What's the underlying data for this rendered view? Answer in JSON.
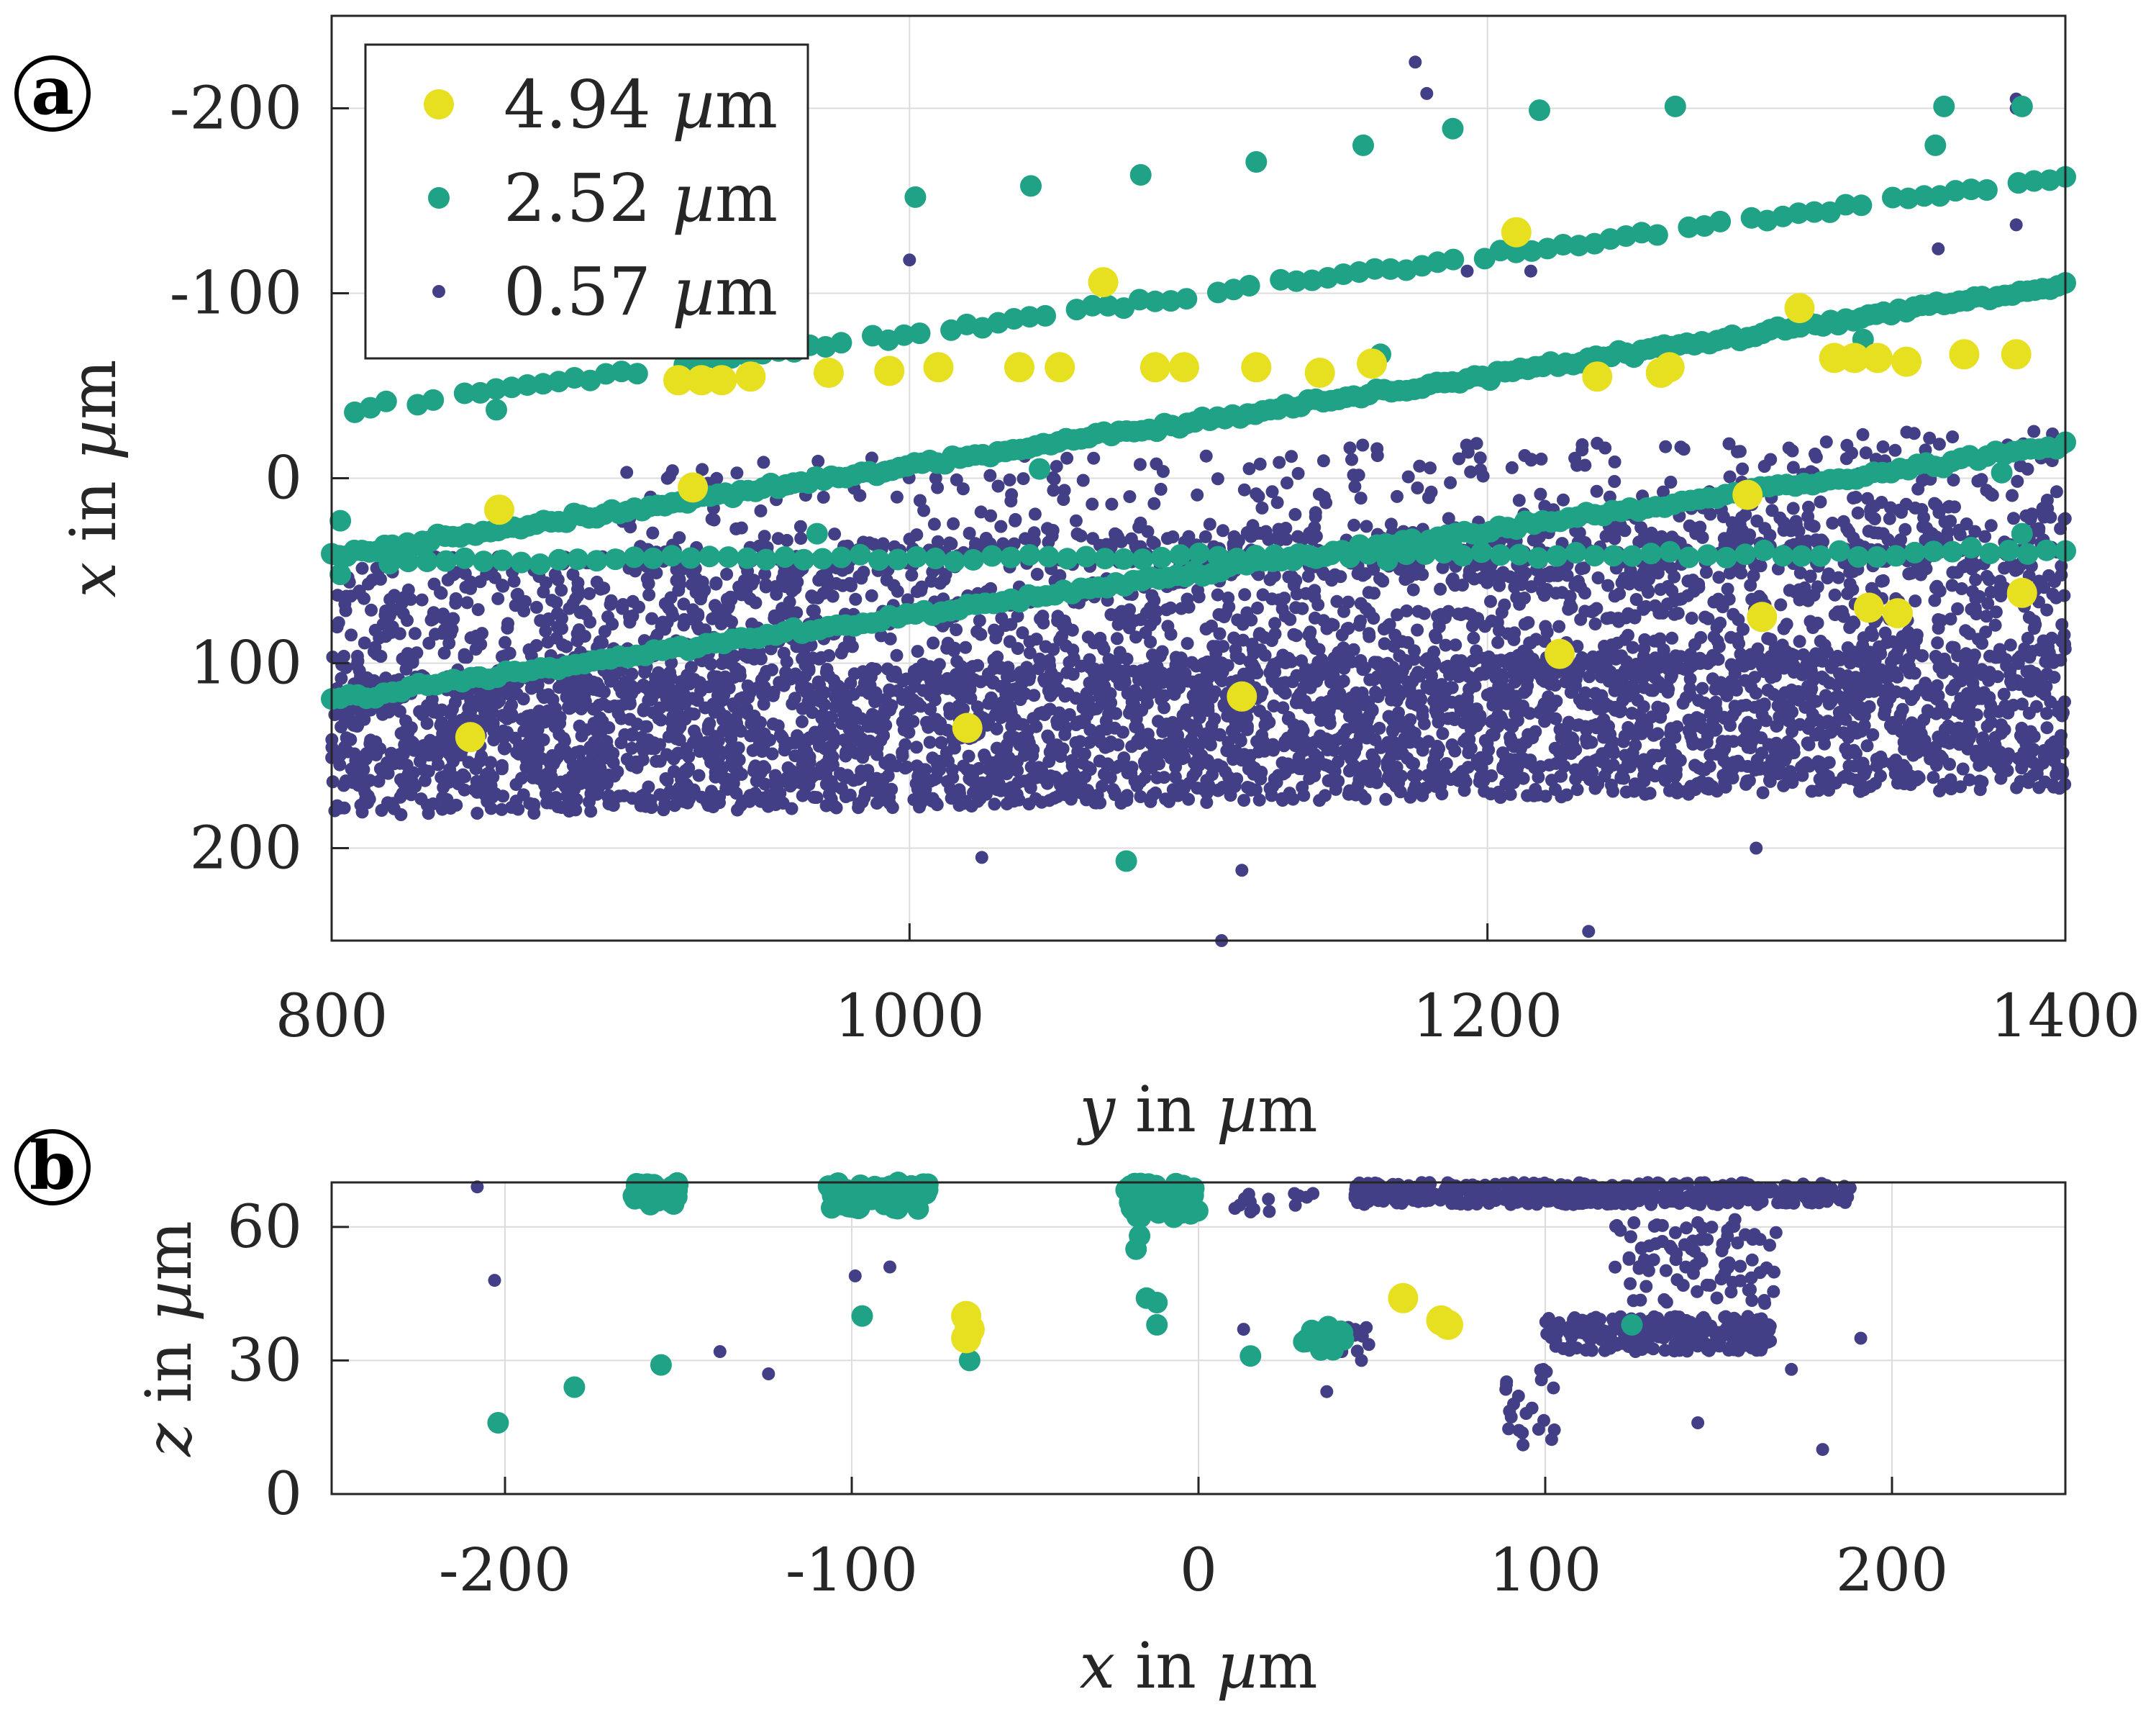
{
  "colors": {
    "large": "#E6E021",
    "medium": "#1FA285",
    "small": "#433F86",
    "grid": "#dcdcdc",
    "axis": "#262626"
  },
  "chart_data": [
    {
      "panel": "a",
      "type": "scatter",
      "xlabel": "y in µm",
      "ylabel": "x in µm",
      "xlim": [
        800,
        1400
      ],
      "ylim": [
        -250,
        250
      ],
      "y_reversed": true,
      "grid": true,
      "legend_position": "top-left",
      "x_ticks": [
        "800",
        "1000",
        "1200",
        "1400"
      ],
      "y_ticks": [
        "-200",
        "-100",
        "0",
        "100",
        "200"
      ],
      "series": [
        {
          "name": "4.94 µm",
          "color": "#E6E021",
          "marker": "large",
          "points": [
            [
              858,
              17
            ],
            [
              920,
              -53
            ],
            [
              928,
              -53
            ],
            [
              935,
              -53
            ],
            [
              945,
              -55
            ],
            [
              925,
              5
            ],
            [
              972,
              -57
            ],
            [
              993,
              -58
            ],
            [
              1010,
              -60
            ],
            [
              1038,
              -60
            ],
            [
              1052,
              -60
            ],
            [
              1067,
              -106
            ],
            [
              1085,
              -60
            ],
            [
              1095,
              -60
            ],
            [
              1120,
              -60
            ],
            [
              1142,
              -57
            ],
            [
              1160,
              -62
            ],
            [
              1210,
              -133
            ],
            [
              1238,
              -55
            ],
            [
              1260,
              -57
            ],
            [
              1263,
              -60
            ],
            [
              1290,
              9
            ],
            [
              1295,
              75
            ],
            [
              1308,
              -92
            ],
            [
              1320,
              -65
            ],
            [
              1327,
              -65
            ],
            [
              1335,
              -65
            ],
            [
              1345,
              -63
            ],
            [
              1332,
              70
            ],
            [
              1342,
              73
            ],
            [
              1365,
              -67
            ],
            [
              1383,
              -67
            ],
            [
              1385,
              62
            ],
            [
              1225,
              95
            ],
            [
              1115,
              118
            ],
            [
              1020,
              135
            ],
            [
              848,
              140
            ]
          ]
        },
        {
          "name": "2.52 µm",
          "color": "#1FA285",
          "marker": "medium",
          "bands": [
            {
              "x_start": 808,
              "x_end": 1400,
              "y_start": -37,
              "y_end": -163,
              "count": 110,
              "jitter": 3
            },
            {
              "x_start": 800,
              "x_end": 1400,
              "y_start": 42,
              "y_end": -104,
              "count": 230,
              "jitter": 3
            },
            {
              "x_start": 800,
              "x_end": 1400,
              "y_start": 120,
              "y_end": -18,
              "count": 200,
              "jitter": 3
            },
            {
              "x_start": 820,
              "x_end": 1400,
              "y_start": 45,
              "y_end": 40,
              "count": 90,
              "jitter": 3
            }
          ],
          "points": [
            [
              803,
              23
            ],
            [
              803,
              52
            ],
            [
              857,
              -37
            ],
            [
              1002,
              -152
            ],
            [
              1042,
              -158
            ],
            [
              1080,
              -164
            ],
            [
              1120,
              -171
            ],
            [
              1157,
              -180
            ],
            [
              1188,
              -189
            ],
            [
              1218,
              -199
            ],
            [
              1265,
              -201
            ],
            [
              1358,
              -201
            ],
            [
              1385,
              -201
            ],
            [
              1355,
              -180
            ],
            [
              1163,
              -67
            ],
            [
              1188,
              38
            ],
            [
              1075,
              207
            ],
            [
              1045,
              -5
            ],
            [
              968,
              30
            ],
            [
              1385,
              30
            ],
            [
              1378,
              -3
            ],
            [
              1330,
              -75
            ]
          ]
        },
        {
          "name": "0.57 µm",
          "color": "#433F86",
          "marker": "small",
          "clusters": [
            {
              "x_start": 800,
              "x_end": 1400,
              "y_center_start": 145,
              "y_center_end": 130,
              "half_width": 38,
              "count": 3200
            },
            {
              "x_start": 800,
              "x_end": 1400,
              "y_center_start": 85,
              "y_center_end": 55,
              "half_width": 42,
              "count": 1700
            },
            {
              "x_start": 900,
              "x_end": 1400,
              "y_center_start": 30,
              "y_center_end": 10,
              "half_width": 38,
              "count": 450
            }
          ],
          "points": [
            [
              1175,
              -225
            ],
            [
              1179,
              -208
            ],
            [
              1000,
              -118
            ],
            [
              1193,
              -112
            ],
            [
              1215,
              -112
            ],
            [
              1356,
              -124
            ],
            [
              1383,
              -137
            ],
            [
              1383,
              -205
            ],
            [
              1108,
              250
            ],
            [
              1235,
              245
            ],
            [
              1115,
              212
            ],
            [
              1293,
              200
            ],
            [
              1025,
              205
            ],
            [
              1383,
              -200
            ]
          ]
        }
      ]
    },
    {
      "panel": "b",
      "type": "scatter",
      "xlabel": "x in µm",
      "ylabel": "z in µm",
      "xlim": [
        -250,
        250
      ],
      "ylim": [
        0,
        70
      ],
      "grid": true,
      "x_ticks": [
        "-200",
        "-100",
        "0",
        "100",
        "200"
      ],
      "y_ticks": [
        "0",
        "30",
        "60"
      ],
      "series": [
        {
          "name": "4.94 µm",
          "color": "#E6E021",
          "marker": "large",
          "points": [
            [
              -67,
              40
            ],
            [
              -66,
              37
            ],
            [
              -67,
              35
            ],
            [
              59,
              44
            ],
            [
              70,
              39
            ],
            [
              72,
              38
            ]
          ]
        },
        {
          "name": "2.52 µm",
          "color": "#1FA285",
          "marker": "medium",
          "clusters": [
            {
              "x_min": -163,
              "x_max": -150,
              "y_min": 65,
              "y_max": 70,
              "count": 30
            },
            {
              "x_min": -107,
              "x_max": -78,
              "y_min": 64,
              "y_max": 70,
              "count": 70
            },
            {
              "x_min": -22,
              "x_max": 0,
              "y_min": 62,
              "y_max": 70,
              "count": 60
            },
            {
              "x_min": 30,
              "x_max": 42,
              "y_min": 32,
              "y_max": 38,
              "count": 18
            }
          ],
          "points": [
            [
              -202,
              16
            ],
            [
              -180,
              24
            ],
            [
              -155,
              29
            ],
            [
              -97,
              40
            ],
            [
              -66,
              30
            ],
            [
              -18,
              55
            ],
            [
              -17,
              58
            ],
            [
              -15,
              44
            ],
            [
              -12,
              43
            ],
            [
              -12,
              38
            ],
            [
              15,
              31
            ],
            [
              125,
              38
            ]
          ]
        },
        {
          "name": "0.57 µm",
          "color": "#433F86",
          "marker": "small",
          "clusters": [
            {
              "x_min": 45,
              "x_max": 188,
              "y_min": 65,
              "y_max": 70,
              "count": 420
            },
            {
              "x_min": 100,
              "x_max": 165,
              "y_min": 32,
              "y_max": 40,
              "count": 230
            },
            {
              "x_min": 120,
              "x_max": 168,
              "y_min": 42,
              "y_max": 62,
              "count": 90
            },
            {
              "x_min": 88,
              "x_max": 104,
              "y_min": 8,
              "y_max": 28,
              "count": 22
            },
            {
              "x_min": 10,
              "x_max": 35,
              "y_min": 62,
              "y_max": 68,
              "count": 14
            },
            {
              "x_min": 35,
              "x_max": 50,
              "y_min": 30,
              "y_max": 38,
              "count": 10
            }
          ],
          "points": [
            [
              -208,
              69
            ],
            [
              -203,
              48
            ],
            [
              -138,
              32
            ],
            [
              -124,
              27
            ],
            [
              -99,
              49
            ],
            [
              -89,
              51
            ],
            [
              -18,
              69
            ],
            [
              -14,
              67
            ],
            [
              -6,
              69
            ],
            [
              13,
              37
            ],
            [
              37,
              23
            ],
            [
              47,
              30
            ],
            [
              144,
              16
            ],
            [
              171,
              28
            ],
            [
              180,
              10
            ],
            [
              191,
              35
            ]
          ]
        }
      ]
    }
  ],
  "panel_labels": {
    "a": "a",
    "b": "b"
  },
  "axis_labels": {
    "a_x_var": "y",
    "a_y_var": "x",
    "b_x_var": "x",
    "b_y_var": "z",
    "unit_suffix": " in ",
    "unit_mu": "µ",
    "unit_m": "m"
  },
  "legend": {
    "entries": [
      {
        "label": "4.94 ",
        "mu": "µ",
        "unit": "m",
        "color": "#E6E021"
      },
      {
        "label": "2.52 ",
        "mu": "µ",
        "unit": "m",
        "color": "#1FA285"
      },
      {
        "label": "0.57 ",
        "mu": "µ",
        "unit": "m",
        "color": "#433F86"
      }
    ]
  }
}
